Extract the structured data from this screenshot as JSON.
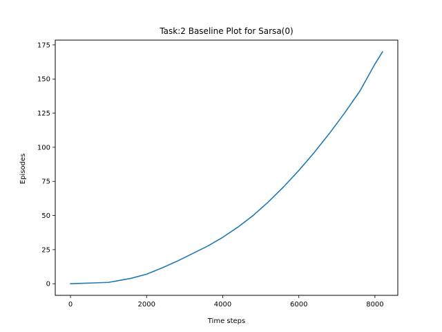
{
  "chart_data": {
    "type": "line",
    "title": "Task:2 Baseline Plot for Sarsa(0)",
    "xlabel": "Time steps",
    "ylabel": "Episodes",
    "xlim": [
      -400,
      8600
    ],
    "ylim": [
      -8.5,
      178.5
    ],
    "xticks": [
      0,
      2000,
      4000,
      6000,
      8000
    ],
    "yticks": [
      0,
      25,
      50,
      75,
      100,
      125,
      150,
      175
    ],
    "grid": false,
    "series": [
      {
        "color": "#1f77b4",
        "x": [
          0,
          500,
          1000,
          1200,
          1600,
          2000,
          2400,
          2800,
          3200,
          3600,
          4000,
          4400,
          4800,
          5200,
          5600,
          6000,
          6400,
          6800,
          7200,
          7600,
          8000,
          8200
        ],
        "y": [
          0,
          0.5,
          1,
          2,
          4,
          7,
          11.5,
          16.5,
          22,
          27.5,
          34,
          41.5,
          50,
          60,
          71,
          83,
          96,
          110,
          125,
          141,
          161,
          170
        ]
      }
    ]
  }
}
